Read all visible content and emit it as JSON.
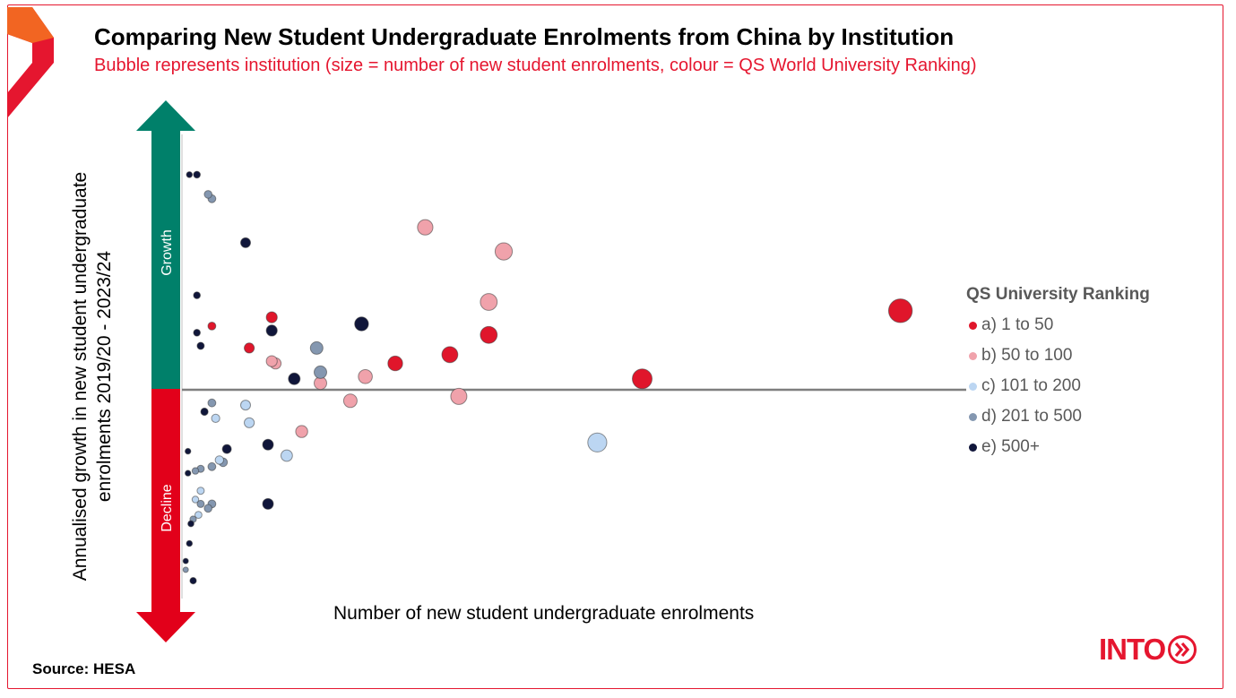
{
  "header": {
    "title": "Comparing New Student Undergraduate Enrolments from China by Institution",
    "subtitle": "Bubble represents institution (size = number of new student enrolments, colour = QS World University Ranking)"
  },
  "axes": {
    "ylabel": "Annualised growth in new student undergraduate enrolments 2019/20 - 2023/24",
    "xlabel": "Number of new student undergraduate enrolments",
    "growth_label": "Growth",
    "decline_label": "Decline"
  },
  "legend": {
    "title": "QS University Ranking",
    "items": [
      {
        "label": "a) 1 to 50",
        "color": "#e0162b"
      },
      {
        "label": "b) 50 to 100",
        "color": "#f0a2ab"
      },
      {
        "label": "c) 101 to 200",
        "color": "#bcd6f2"
      },
      {
        "label": "d) 201 to 500",
        "color": "#8497b0"
      },
      {
        "label": "e) 500+",
        "color": "#10163a"
      }
    ]
  },
  "footer": {
    "source": "Source: HESA",
    "brand": "INTO"
  },
  "colors": {
    "accent": "#e5162f",
    "growth": "#00806a",
    "decline": "#e2001a",
    "zero_line": "#7f7f7f"
  },
  "chart_data": {
    "type": "scatter",
    "title": "Comparing New Student Undergraduate Enrolments from China by Institution",
    "xlabel": "Number of new student undergraduate enrolments",
    "ylabel": "Annualised growth in new student undergraduate enrolments 2019/20 - 2023/24",
    "xlim": [
      0,
      1000
    ],
    "ylim": [
      -1,
      1
    ],
    "grid": false,
    "legend_position": "right",
    "series": [
      {
        "name": "a) 1 to 50",
        "color": "#e0162b",
        "points": [
          {
            "x": 960,
            "y": 0.36,
            "size": 960
          },
          {
            "x": 615,
            "y": 0.05,
            "size": 615
          },
          {
            "x": 410,
            "y": 0.25,
            "size": 410
          },
          {
            "x": 358,
            "y": 0.16,
            "size": 358
          },
          {
            "x": 285,
            "y": 0.12,
            "size": 285
          },
          {
            "x": 120,
            "y": 0.33,
            "size": 120
          },
          {
            "x": 90,
            "y": 0.19,
            "size": 90
          },
          {
            "x": 40,
            "y": 0.29,
            "size": 40
          }
        ]
      },
      {
        "name": "b) 50 to 100",
        "color": "#f0a2ab",
        "points": [
          {
            "x": 430,
            "y": 0.63,
            "size": 430
          },
          {
            "x": 325,
            "y": 0.74,
            "size": 325
          },
          {
            "x": 410,
            "y": 0.4,
            "size": 410
          },
          {
            "x": 370,
            "y": -0.03,
            "size": 370
          },
          {
            "x": 245,
            "y": 0.06,
            "size": 245
          },
          {
            "x": 225,
            "y": -0.05,
            "size": 225
          },
          {
            "x": 185,
            "y": 0.03,
            "size": 185
          },
          {
            "x": 160,
            "y": -0.19,
            "size": 160
          },
          {
            "x": 125,
            "y": 0.12,
            "size": 125
          },
          {
            "x": 120,
            "y": 0.13,
            "size": 120
          }
        ]
      },
      {
        "name": "c) 101 to 200",
        "color": "#bcd6f2",
        "points": [
          {
            "x": 555,
            "y": -0.24,
            "size": 555
          },
          {
            "x": 140,
            "y": -0.3,
            "size": 140
          },
          {
            "x": 90,
            "y": -0.15,
            "size": 90
          },
          {
            "x": 85,
            "y": -0.07,
            "size": 85
          },
          {
            "x": 45,
            "y": -0.13,
            "size": 45
          },
          {
            "x": 50,
            "y": -0.32,
            "size": 50
          },
          {
            "x": 25,
            "y": -0.46,
            "size": 25
          },
          {
            "x": 22,
            "y": -0.57,
            "size": 22
          },
          {
            "x": 18,
            "y": -0.5,
            "size": 18
          }
        ]
      },
      {
        "name": "d) 201 to 500",
        "color": "#8497b0",
        "points": [
          {
            "x": 180,
            "y": 0.19,
            "size": 180
          },
          {
            "x": 185,
            "y": 0.08,
            "size": 185
          },
          {
            "x": 35,
            "y": 0.89,
            "size": 35
          },
          {
            "x": 40,
            "y": 0.87,
            "size": 40
          },
          {
            "x": 40,
            "y": -0.06,
            "size": 40
          },
          {
            "x": 55,
            "y": -0.33,
            "size": 55
          },
          {
            "x": 40,
            "y": -0.35,
            "size": 40
          },
          {
            "x": 25,
            "y": -0.36,
            "size": 25
          },
          {
            "x": 18,
            "y": -0.37,
            "size": 18
          },
          {
            "x": 25,
            "y": -0.52,
            "size": 25
          },
          {
            "x": 40,
            "y": -0.52,
            "size": 40
          },
          {
            "x": 35,
            "y": -0.54,
            "size": 35
          },
          {
            "x": 15,
            "y": -0.59,
            "size": 15
          },
          {
            "x": 5,
            "y": -0.82,
            "size": 5
          }
        ]
      },
      {
        "name": "e) 500+",
        "color": "#10163a",
        "points": [
          {
            "x": 240,
            "y": 0.3,
            "size": 240
          },
          {
            "x": 150,
            "y": 0.05,
            "size": 150
          },
          {
            "x": 120,
            "y": 0.27,
            "size": 120
          },
          {
            "x": 85,
            "y": 0.67,
            "size": 85
          },
          {
            "x": 115,
            "y": -0.25,
            "size": 115
          },
          {
            "x": 115,
            "y": -0.52,
            "size": 115
          },
          {
            "x": 60,
            "y": -0.27,
            "size": 60
          },
          {
            "x": 30,
            "y": -0.1,
            "size": 30
          },
          {
            "x": 20,
            "y": 0.43,
            "size": 20
          },
          {
            "x": 20,
            "y": 0.26,
            "size": 20
          },
          {
            "x": 25,
            "y": 0.2,
            "size": 25
          },
          {
            "x": 10,
            "y": 0.98,
            "size": 10
          },
          {
            "x": 20,
            "y": 0.98,
            "size": 20
          },
          {
            "x": 8,
            "y": -0.28,
            "size": 8
          },
          {
            "x": 8,
            "y": -0.38,
            "size": 8
          },
          {
            "x": 12,
            "y": -0.61,
            "size": 12
          },
          {
            "x": 10,
            "y": -0.7,
            "size": 10
          },
          {
            "x": 5,
            "y": -0.78,
            "size": 5
          },
          {
            "x": 15,
            "y": -0.87,
            "size": 15
          }
        ]
      }
    ]
  }
}
